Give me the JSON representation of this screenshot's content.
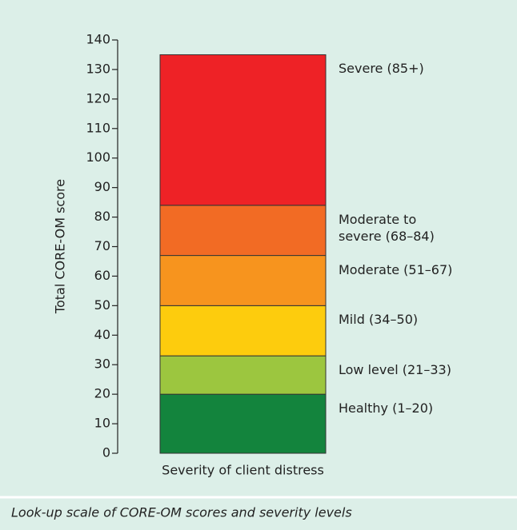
{
  "chart_data": {
    "type": "stacked_bar",
    "y_label": "Total CORE-OM score",
    "categories": [
      "Severity of client distress"
    ],
    "series": [
      {
        "name": "Healthy (1–20)",
        "color": "#13843d",
        "values": [
          20
        ]
      },
      {
        "name": "Low level (21–33)",
        "color": "#9cc63f",
        "values": [
          13
        ]
      },
      {
        "name": "Mild (34–50)",
        "color": "#fdcc0d",
        "values": [
          17
        ]
      },
      {
        "name": "Moderate (51–67)",
        "color": "#f7941e",
        "values": [
          17
        ]
      },
      {
        "name": "Moderate to\nsevere (68–84)",
        "color": "#f26b24",
        "values": [
          17
        ]
      },
      {
        "name": "Severe (85+)",
        "color": "#ee2226",
        "values": [
          51
        ]
      }
    ],
    "ylim": [
      0,
      140
    ],
    "yticks": [
      0,
      10,
      20,
      30,
      40,
      50,
      60,
      70,
      80,
      90,
      100,
      110,
      120,
      130,
      140
    ],
    "caption": "Look-up scale of CORE-OM scores and severity levels"
  }
}
